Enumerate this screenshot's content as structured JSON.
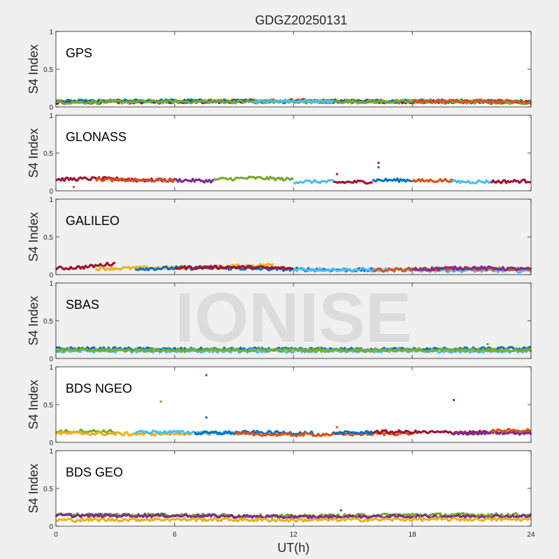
{
  "chart_data": {
    "type": "scatter",
    "title": "GDGZ20250131",
    "xlabel": "UT(h)",
    "ylabel": "S4 Index",
    "xlim": [
      0,
      24
    ],
    "ylim": [
      0,
      1
    ],
    "xticks": [
      "0",
      "6",
      "12",
      "18",
      "24"
    ],
    "yticks": [
      "0",
      "0.5",
      "1"
    ],
    "watermark": "IONISE",
    "palette": [
      "#0072BD",
      "#D95319",
      "#EDB120",
      "#7E2F8E",
      "#77AC30",
      "#4DBEEE",
      "#A2142F"
    ],
    "panels": [
      {
        "system": "GPS",
        "background": "#ffffff",
        "segments": [
          {
            "color": "#EDB120",
            "x": [
              0,
              6,
              12,
              18,
              24
            ],
            "y": [
              0.07,
              0.08,
              0.08,
              0.07,
              0.07
            ]
          },
          {
            "color": "#A2142F",
            "x": [
              0,
              6,
              12,
              18,
              24
            ],
            "y": [
              0.06,
              0.07,
              0.08,
              0.07,
              0.06
            ]
          },
          {
            "color": "#0072BD",
            "x": [
              0,
              6,
              12,
              18,
              24
            ],
            "y": [
              0.07,
              0.08,
              0.07,
              0.08,
              0.07
            ]
          },
          {
            "color": "#77AC30",
            "x": [
              0,
              6,
              12,
              18,
              24
            ],
            "y": [
              0.06,
              0.07,
              0.07,
              0.07,
              0.06
            ]
          },
          {
            "color": "#4DBEEE",
            "x": [
              10,
              12,
              14
            ],
            "y": [
              0.07,
              0.08,
              0.07
            ]
          },
          {
            "color": "#D95319",
            "x": [
              18,
              21,
              24
            ],
            "y": [
              0.07,
              0.08,
              0.07
            ]
          }
        ],
        "outliers": []
      },
      {
        "system": "GLONASS",
        "background": "#ffffff",
        "segments": [
          {
            "color": "#A2142F",
            "x": [
              0,
              2,
              4
            ],
            "y": [
              0.15,
              0.16,
              0.15
            ]
          },
          {
            "color": "#7E2F8E",
            "x": [
              4,
              6,
              8
            ],
            "y": [
              0.14,
              0.14,
              0.13
            ]
          },
          {
            "color": "#77AC30",
            "x": [
              8,
              10,
              12
            ],
            "y": [
              0.15,
              0.17,
              0.15
            ]
          },
          {
            "color": "#4DBEEE",
            "x": [
              12,
              14
            ],
            "y": [
              0.12,
              0.12
            ]
          },
          {
            "color": "#A2142F",
            "x": [
              14,
              16
            ],
            "y": [
              0.11,
              0.12
            ]
          },
          {
            "color": "#0072BD",
            "x": [
              16,
              18
            ],
            "y": [
              0.14,
              0.14
            ]
          },
          {
            "color": "#D95319",
            "x": [
              18,
              20
            ],
            "y": [
              0.13,
              0.14
            ]
          },
          {
            "color": "#4DBEEE",
            "x": [
              20,
              22
            ],
            "y": [
              0.12,
              0.12
            ]
          },
          {
            "color": "#A2142F",
            "x": [
              22,
              24
            ],
            "y": [
              0.12,
              0.13
            ]
          },
          {
            "color": "#D95319",
            "x": [
              2,
              4,
              6
            ],
            "y": [
              0.15,
              0.14,
              0.14
            ]
          }
        ],
        "outliers": [
          {
            "x": 0.9,
            "y": 0.05,
            "color": "#D95319"
          },
          {
            "x": 14.2,
            "y": 0.22,
            "color": "#A2142F"
          },
          {
            "x": 16.3,
            "y": 0.37,
            "color": "#A2142F"
          },
          {
            "x": 16.3,
            "y": 0.31,
            "color": "#0072BD"
          }
        ]
      },
      {
        "system": "GALILEO",
        "background": "#f0f0f0",
        "segments": [
          {
            "color": "#A2142F",
            "x": [
              0,
              1.5,
              3
            ],
            "y": [
              0.08,
              0.1,
              0.15
            ]
          },
          {
            "color": "#EDB120",
            "x": [
              2,
              5,
              8,
              11
            ],
            "y": [
              0.08,
              0.09,
              0.1,
              0.13
            ]
          },
          {
            "color": "#0072BD",
            "x": [
              4,
              8,
              12,
              16
            ],
            "y": [
              0.08,
              0.09,
              0.07,
              0.06
            ]
          },
          {
            "color": "#A2142F",
            "x": [
              6,
              9,
              12
            ],
            "y": [
              0.09,
              0.1,
              0.08
            ]
          },
          {
            "color": "#4DBEEE",
            "x": [
              12,
              18,
              24
            ],
            "y": [
              0.07,
              0.06,
              0.05
            ]
          },
          {
            "color": "#D95319",
            "x": [
              16,
              20,
              24
            ],
            "y": [
              0.06,
              0.08,
              0.07
            ]
          },
          {
            "color": "#7E2F8E",
            "x": [
              18,
              21,
              24
            ],
            "y": [
              0.07,
              0.09,
              0.07
            ]
          }
        ],
        "outliers": []
      },
      {
        "system": "SBAS",
        "background": "#f0f0f0",
        "segments": [
          {
            "color": "#0072BD",
            "x": [
              0,
              6,
              12,
              18,
              24
            ],
            "y": [
              0.13,
              0.12,
              0.12,
              0.12,
              0.13
            ]
          },
          {
            "color": "#4DBEEE",
            "x": [
              0,
              6,
              12,
              18,
              24
            ],
            "y": [
              0.1,
              0.1,
              0.1,
              0.1,
              0.1
            ]
          },
          {
            "color": "#77AC30",
            "x": [
              0,
              6,
              12,
              18,
              24
            ],
            "y": [
              0.11,
              0.11,
              0.11,
              0.11,
              0.11
            ]
          }
        ],
        "outliers": [
          {
            "x": 21.8,
            "y": 0.19,
            "color": "#77AC30"
          }
        ]
      },
      {
        "system": "BDS NGEO",
        "background": "#ffffff",
        "segments": [
          {
            "color": "#77AC30",
            "x": [
              0,
              1.5,
              3
            ],
            "y": [
              0.14,
              0.15,
              0.14
            ]
          },
          {
            "color": "#EDB120",
            "x": [
              0,
              4,
              8
            ],
            "y": [
              0.12,
              0.11,
              0.12
            ]
          },
          {
            "color": "#4DBEEE",
            "x": [
              4,
              7,
              10
            ],
            "y": [
              0.14,
              0.13,
              0.12
            ]
          },
          {
            "color": "#0072BD",
            "x": [
              7,
              10,
              13
            ],
            "y": [
              0.12,
              0.13,
              0.12
            ]
          },
          {
            "color": "#D95319",
            "x": [
              9,
              12,
              15,
              18
            ],
            "y": [
              0.11,
              0.1,
              0.11,
              0.12
            ]
          },
          {
            "color": "#0072BD",
            "x": [
              14,
              16
            ],
            "y": [
              0.12,
              0.13
            ]
          },
          {
            "color": "#A2142F",
            "x": [
              16,
              20,
              24
            ],
            "y": [
              0.14,
              0.13,
              0.13
            ]
          },
          {
            "color": "#7E2F8E",
            "x": [
              20,
              22,
              24
            ],
            "y": [
              0.12,
              0.13,
              0.12
            ]
          },
          {
            "color": "#D95319",
            "x": [
              22,
              24
            ],
            "y": [
              0.15,
              0.16
            ]
          }
        ],
        "outliers": [
          {
            "x": 5.3,
            "y": 0.54,
            "color": "#77AC30"
          },
          {
            "x": 7.6,
            "y": 0.89,
            "color": "#0072BD"
          },
          {
            "x": 7.6,
            "y": 0.33,
            "color": "#0072BD"
          },
          {
            "x": 14.2,
            "y": 0.2,
            "color": "#D95319"
          },
          {
            "x": 20.1,
            "y": 0.56,
            "color": "#7E2F8E"
          }
        ]
      },
      {
        "system": "BDS GEO",
        "background": "#ffffff",
        "segments": [
          {
            "color": "#77AC30",
            "x": [
              0,
              6,
              12,
              18,
              24
            ],
            "y": [
              0.15,
              0.15,
              0.13,
              0.15,
              0.15
            ]
          },
          {
            "color": "#7E2F8E",
            "x": [
              0,
              6,
              12,
              18,
              24
            ],
            "y": [
              0.14,
              0.14,
              0.12,
              0.13,
              0.13
            ]
          },
          {
            "color": "#EDB120",
            "x": [
              0,
              6,
              12,
              18,
              24
            ],
            "y": [
              0.08,
              0.09,
              0.08,
              0.09,
              0.09
            ]
          }
        ],
        "outliers": [
          {
            "x": 14.4,
            "y": 0.21,
            "color": "#7E2F8E"
          }
        ]
      }
    ]
  }
}
